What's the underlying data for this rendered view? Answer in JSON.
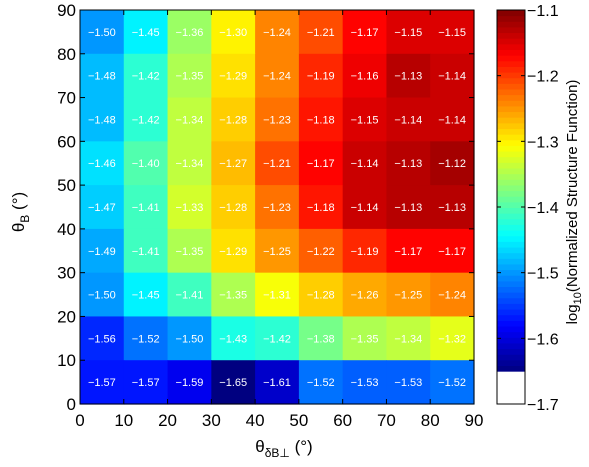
{
  "chart_data": {
    "type": "heatmap",
    "x": [
      5,
      15,
      25,
      35,
      45,
      55,
      65,
      75,
      85
    ],
    "y": [
      85,
      75,
      65,
      55,
      45,
      35,
      25,
      15,
      5
    ],
    "values": [
      [
        -1.5,
        -1.45,
        -1.36,
        -1.3,
        -1.24,
        -1.21,
        -1.17,
        -1.15,
        -1.15
      ],
      [
        -1.48,
        -1.42,
        -1.35,
        -1.29,
        -1.24,
        -1.19,
        -1.16,
        -1.13,
        -1.14
      ],
      [
        -1.48,
        -1.42,
        -1.34,
        -1.28,
        -1.23,
        -1.18,
        -1.15,
        -1.14,
        -1.14
      ],
      [
        -1.46,
        -1.4,
        -1.34,
        -1.27,
        -1.21,
        -1.17,
        -1.14,
        -1.13,
        -1.12
      ],
      [
        -1.47,
        -1.41,
        -1.33,
        -1.28,
        -1.23,
        -1.18,
        -1.14,
        -1.13,
        -1.13
      ],
      [
        -1.49,
        -1.41,
        -1.35,
        -1.29,
        -1.25,
        -1.22,
        -1.19,
        -1.17,
        -1.17
      ],
      [
        -1.5,
        -1.45,
        -1.41,
        -1.35,
        -1.31,
        -1.28,
        -1.26,
        -1.25,
        -1.24
      ],
      [
        -1.56,
        -1.52,
        -1.5,
        -1.43,
        -1.42,
        -1.38,
        -1.35,
        -1.34,
        -1.32
      ],
      [
        -1.57,
        -1.57,
        -1.59,
        -1.65,
        -1.61,
        -1.52,
        -1.53,
        -1.53,
        -1.52
      ]
    ],
    "cell_labels": [
      [
        "−1.50",
        "−1.45",
        "−1.36",
        "−1.30",
        "−1.24",
        "−1.21",
        "−1.17",
        "−1.15",
        "−1.15"
      ],
      [
        "−1.48",
        "−1.42",
        "−1.35",
        "−1.29",
        "−1.24",
        "−1.19",
        "−1.16",
        "−1.13",
        "−1.14"
      ],
      [
        "−1.48",
        "−1.42",
        "−1.34",
        "−1.28",
        "−1.23",
        "−1.18",
        "−1.15",
        "−1.14",
        "−1.14"
      ],
      [
        "−1.46",
        "−1.40",
        "−1.34",
        "−1.27",
        "−1.21",
        "−1.17",
        "−1.14",
        "−1.13",
        "−1.12"
      ],
      [
        "−1.47",
        "−1.41",
        "−1.33",
        "−1.28",
        "−1.23",
        "−1.18",
        "−1.14",
        "−1.13",
        "−1.13"
      ],
      [
        "−1.49",
        "−1.41",
        "−1.35",
        "−1.29",
        "−1.25",
        "−1.22",
        "−1.19",
        "−1.17",
        "−1.17"
      ],
      [
        "−1.50",
        "−1.45",
        "−1.41",
        "−1.35",
        "−1.31",
        "−1.28",
        "−1.26",
        "−1.25",
        "−1.24"
      ],
      [
        "−1.56",
        "−1.52",
        "−1.50",
        "−1.43",
        "−1.42",
        "−1.38",
        "−1.35",
        "−1.34",
        "−1.32"
      ],
      [
        "−1.57",
        "−1.57",
        "−1.59",
        "−1.65",
        "−1.61",
        "−1.52",
        "−1.53",
        "−1.53",
        "−1.52"
      ]
    ],
    "xlim": [
      0,
      90
    ],
    "ylim": [
      0,
      90
    ],
    "xticks": [
      "0",
      "10",
      "20",
      "30",
      "40",
      "50",
      "60",
      "70",
      "80",
      "90"
    ],
    "yticks": [
      "0",
      "10",
      "20",
      "30",
      "40",
      "50",
      "60",
      "70",
      "80",
      "90"
    ],
    "xlabel_main": "θ",
    "xlabel_sub": "δB⊥",
    "xlabel_unit": " (°)",
    "ylabel_main": "θ",
    "ylabel_sub": "B",
    "ylabel_unit": " (°)",
    "colorbar": {
      "range": [
        -1.7,
        -1.1
      ],
      "colormap_range": [
        -1.65,
        -1.1
      ],
      "colormap": "jet",
      "ticks": [
        "−1.1",
        "−1.2",
        "−1.3",
        "−1.4",
        "−1.5",
        "−1.6",
        "−1.7"
      ],
      "label_main": "log",
      "label_sub": "10",
      "label_rest": "(Normalized Structure Function)"
    },
    "grid": false,
    "legend": "colorbar-right"
  }
}
